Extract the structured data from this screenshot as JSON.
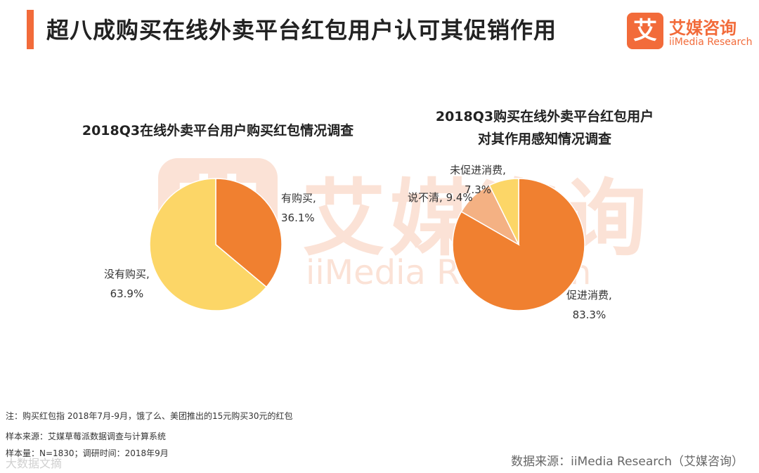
{
  "header": {
    "title": "超八成购买在线外卖平台红包用户认可其促销作用",
    "accent_color": "#f26b3a"
  },
  "logo": {
    "glyph": "艾",
    "name_cn": "艾媒咨询",
    "name_en": "iiMedia Research",
    "color": "#f26b3a"
  },
  "watermark": {
    "glyph": "艾",
    "name_cn": "艾媒咨询",
    "name_en": "iiMedia Research"
  },
  "chart_data": [
    {
      "type": "pie",
      "title": "2018Q3在线外卖平台用户购买红包情况调查",
      "slices": [
        {
          "label": "有购买,",
          "value": 36.1,
          "display": "36.1%",
          "color": "#f08030"
        },
        {
          "label": "没有购买,",
          "value": 63.9,
          "display": "63.9%",
          "color": "#fcd667"
        }
      ]
    },
    {
      "type": "pie",
      "title_lines": [
        "2018Q3购买在线外卖平台红包用户",
        "对其作用感知情况调查"
      ],
      "slices": [
        {
          "label": "促进消费,",
          "value": 83.3,
          "display": "83.3%",
          "color": "#f08030"
        },
        {
          "label": "说不清,",
          "value": 9.4,
          "display": "9.4%",
          "color": "#f4b183"
        },
        {
          "label": "未促进消费,",
          "value": 7.3,
          "display": "7.3%",
          "color": "#fcd667"
        }
      ]
    }
  ],
  "notes": {
    "note": "注：购买红包指 2018年7月-9月，饿了么、美团推出的15元购买30元的红包",
    "sample_source": "样本来源：艾媒草莓派数据调查与计算系统",
    "sample_size": "样本量：N=1830；调研时间：2018年9月"
  },
  "source": "数据来源：iiMedia Research（艾媒咨询）",
  "wechat_tag": "大数据文摘"
}
